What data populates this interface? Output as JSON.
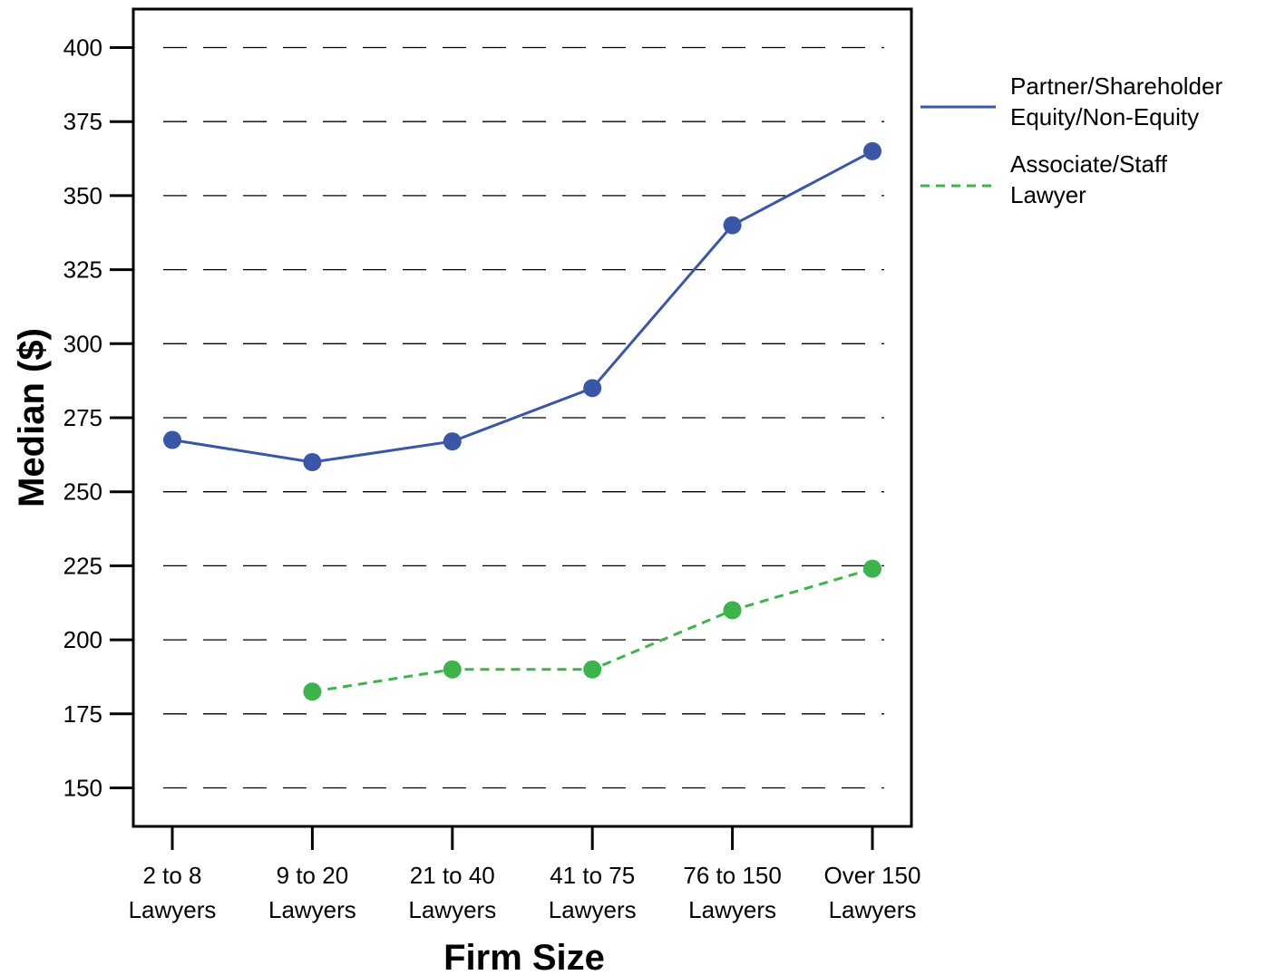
{
  "chart_data": {
    "type": "line",
    "title": "",
    "xlabel": "Firm Size",
    "ylabel": "Median ($)",
    "categories": [
      [
        "2 to 8",
        "Lawyers"
      ],
      [
        "9 to 20",
        "Lawyers"
      ],
      [
        "21 to 40",
        "Lawyers"
      ],
      [
        "41 to 75",
        "Lawyers"
      ],
      [
        "76 to 150",
        "Lawyers"
      ],
      [
        "Over 150",
        "Lawyers"
      ]
    ],
    "yticks": [
      "150",
      "175",
      "200",
      "225",
      "250",
      "275",
      "300",
      "325",
      "350",
      "375",
      "400"
    ],
    "ylim": [
      137,
      413
    ],
    "grid": true,
    "legend_position": "right",
    "series": [
      {
        "name": [
          "Partner/Shareholder",
          "Equity/Non-Equity"
        ],
        "color": "#3a56a6",
        "dash": "solid",
        "values": [
          267.5,
          260,
          267,
          285,
          340,
          365
        ]
      },
      {
        "name": [
          "Associate/Staff",
          "Lawyer"
        ],
        "color": "#3cb44b",
        "dash": "dashed",
        "values": [
          null,
          182.5,
          190,
          190,
          210,
          224
        ]
      }
    ]
  }
}
